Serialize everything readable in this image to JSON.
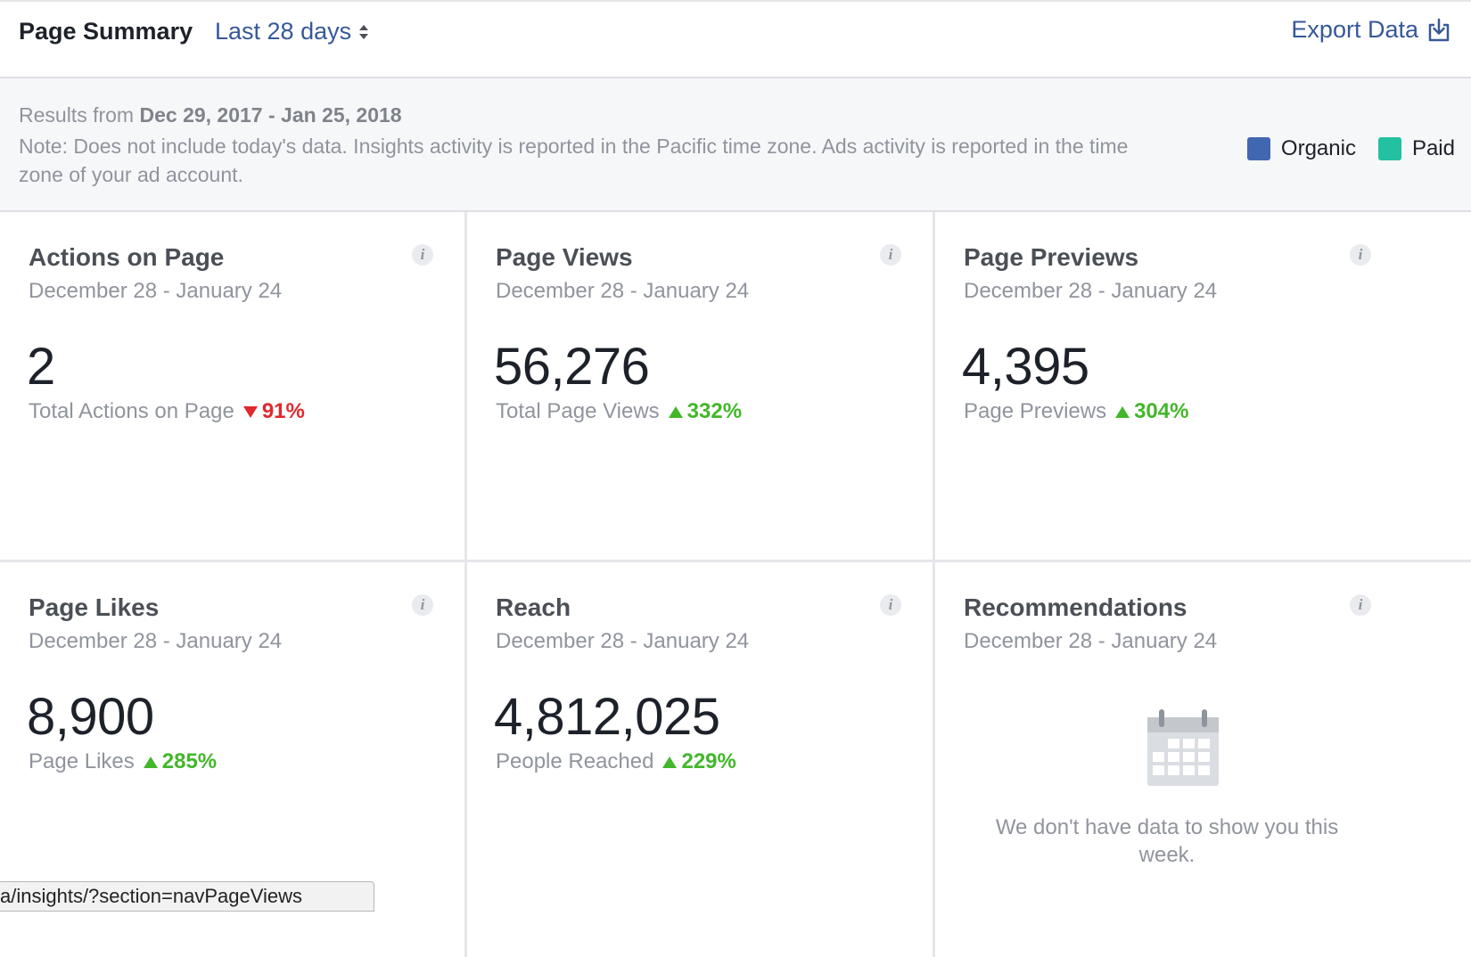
{
  "header": {
    "title": "Page Summary",
    "range": "Last 28 days",
    "export_label": "Export Data"
  },
  "info": {
    "results_prefix": "Results from ",
    "results_range": "Dec 29, 2017 - Jan 25, 2018",
    "note": "Note: Does not include today's data. Insights activity is reported in the Pacific time zone. Ads activity is reported in the time zone of your ad account."
  },
  "legend": {
    "items": [
      {
        "label": "Organic",
        "color": "#4267b2"
      },
      {
        "label": "Paid",
        "color": "#23c0a1"
      }
    ]
  },
  "cards": [
    {
      "title": "Actions on Page",
      "dates": "December 28 - January 24",
      "value": "2",
      "sub": "Total Actions on Page",
      "change": "91%",
      "direction": "down"
    },
    {
      "title": "Page Views",
      "dates": "December 28 - January 24",
      "value": "56,276",
      "sub": "Total Page Views",
      "change": "332%",
      "direction": "up"
    },
    {
      "title": "Page Previews",
      "dates": "December 28 - January 24",
      "value": "4,395",
      "sub": "Page Previews",
      "change": "304%",
      "direction": "up"
    },
    {
      "title": "Page Likes",
      "dates": "December 28 - January 24",
      "value": "8,900",
      "sub": "Page Likes",
      "change": "285%",
      "direction": "up"
    },
    {
      "title": "Reach",
      "dates": "December 28 - January 24",
      "value": "4,812,025",
      "sub": "People Reached",
      "change": "229%",
      "direction": "up"
    },
    {
      "title": "Recommendations",
      "dates": "December 28 - January 24",
      "empty_message": "We don't have data to show you this week."
    }
  ],
  "info_icon_glyph": "i",
  "status_url": "a/insights/?section=navPageViews"
}
